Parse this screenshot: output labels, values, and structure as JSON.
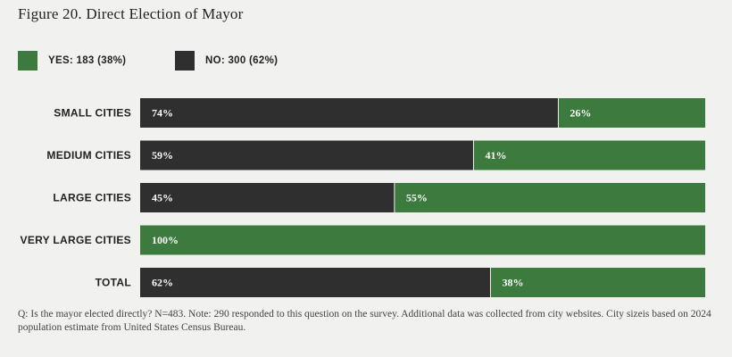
{
  "title": "Figure 20.  Direct Election of Mayor",
  "colors": {
    "yes": "#3d7a3e",
    "no": "#2f2f2f"
  },
  "legend": [
    {
      "key": "yes",
      "label": "YES: 183 (38%)"
    },
    {
      "key": "no",
      "label": "NO: 300 (62%)"
    }
  ],
  "chart_data": {
    "type": "bar",
    "orientation": "horizontal",
    "stacked": true,
    "xlim": [
      0,
      100
    ],
    "categories": [
      "SMALL CITIES",
      "MEDIUM CITIES",
      "LARGE CITIES",
      "VERY LARGE CITIES",
      "TOTAL"
    ],
    "series": [
      {
        "name": "NO",
        "color_key": "no",
        "values": [
          74,
          59,
          45,
          0,
          62
        ],
        "labels": [
          "74%",
          "59%",
          "45%",
          "",
          "62%"
        ]
      },
      {
        "name": "YES",
        "color_key": "yes",
        "values": [
          26,
          41,
          55,
          100,
          38
        ],
        "labels": [
          "26%",
          "41%",
          "55%",
          "100%",
          "38%"
        ]
      }
    ]
  },
  "footnote": "Q:  Is the mayor elected directly? N=483. Note: 290 responded to this question on the survey. Additional data was collected from city websites. City sizeis based on 2024 population estimate from United States Census Bureau."
}
